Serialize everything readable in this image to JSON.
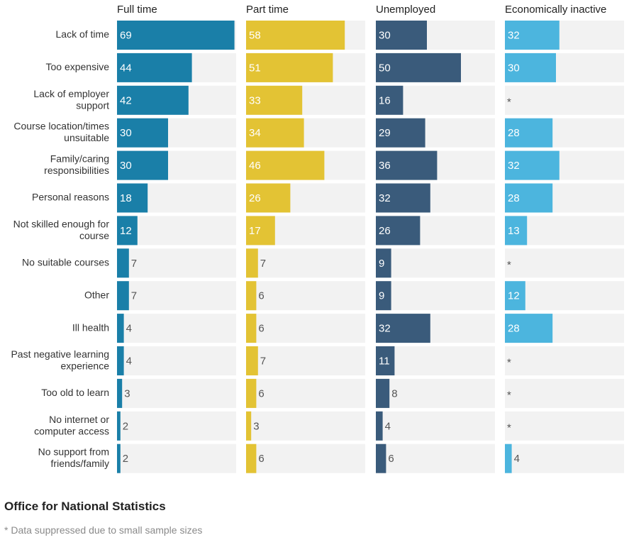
{
  "chart_data": {
    "type": "bar",
    "orientation": "horizontal",
    "layout": "small-multiples",
    "xlim": [
      0,
      70
    ],
    "categories": [
      "Lack of time",
      "Too expensive",
      "Lack of employer support",
      "Course location/times unsuitable",
      "Family/caring responsibilities",
      "Personal reasons",
      "Not skilled enough for course",
      "No suitable courses",
      "Other",
      "Ill health",
      "Past negative learning experience",
      "Too old to learn",
      "No internet or computer access",
      "No support from friends/family"
    ],
    "category_lines": [
      [
        "Lack of time"
      ],
      [
        "Too expensive"
      ],
      [
        "Lack of employer",
        "support"
      ],
      [
        "Course location/times",
        "unsuitable"
      ],
      [
        "Family/caring",
        "responsibilities"
      ],
      [
        "Personal reasons"
      ],
      [
        "Not skilled enough for",
        "course"
      ],
      [
        "No suitable courses"
      ],
      [
        "Other"
      ],
      [
        "Ill health"
      ],
      [
        "Past negative learning",
        "experience"
      ],
      [
        "Too old to learn"
      ],
      [
        "No internet or",
        "computer access"
      ],
      [
        "No support from",
        "friends/family"
      ]
    ],
    "series": [
      {
        "name": "Full time",
        "color": "#1a7fa8",
        "values": [
          69,
          44,
          42,
          30,
          30,
          18,
          12,
          7,
          7,
          4,
          4,
          3,
          2,
          2
        ]
      },
      {
        "name": "Part time",
        "color": "#e3c334",
        "values": [
          58,
          51,
          33,
          34,
          46,
          26,
          17,
          7,
          6,
          6,
          7,
          6,
          3,
          6
        ]
      },
      {
        "name": "Unemployed",
        "color": "#3a5b7b",
        "values": [
          30,
          50,
          16,
          29,
          36,
          32,
          26,
          9,
          9,
          32,
          11,
          8,
          4,
          6
        ]
      },
      {
        "name": "Economically inactive",
        "color": "#4cb5de",
        "values": [
          32,
          30,
          null,
          28,
          32,
          28,
          13,
          null,
          12,
          28,
          null,
          null,
          null,
          4
        ]
      }
    ],
    "suppressed_marker": "*",
    "panel_background": "#f2f2f2"
  },
  "footer": {
    "source": "Office for National Statistics",
    "note": "* Data suppressed due to small sample sizes"
  }
}
